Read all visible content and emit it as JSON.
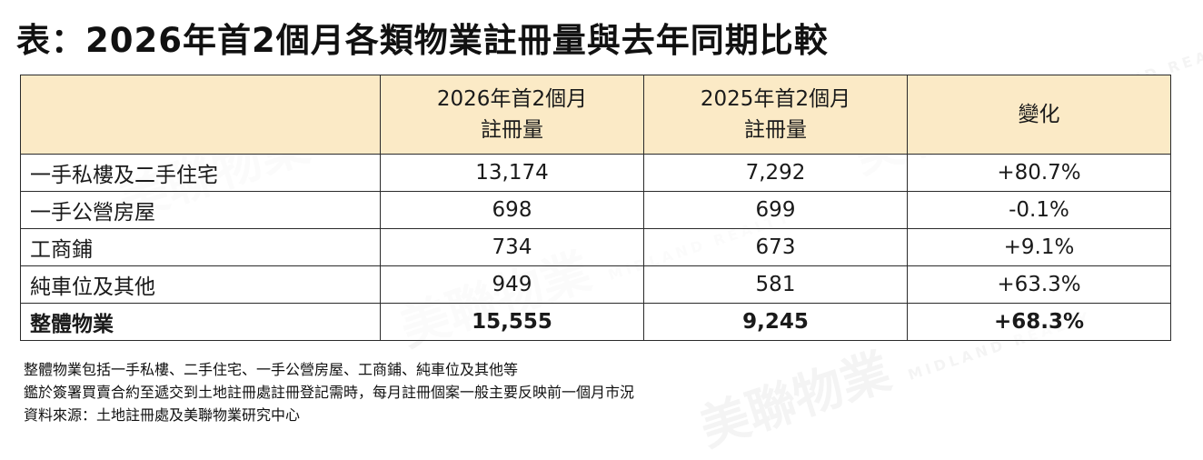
{
  "title": "表：2026年首2個月各類物業註冊量與去年同期比較",
  "table": {
    "header": {
      "col0": "",
      "col1_line1": "2026年首2個月",
      "col1_line2": "註冊量",
      "col2_line1": "2025年首2個月",
      "col2_line2": "註冊量",
      "col3": "變化"
    },
    "rows": [
      {
        "label": "一手私樓及二手住宅",
        "y2026": "13,174",
        "y2025": "7,292",
        "change": "+80.7%"
      },
      {
        "label": "一手公營房屋",
        "y2026": "698",
        "y2025": "699",
        "change": "-0.1%"
      },
      {
        "label": "工商鋪",
        "y2026": "734",
        "y2025": "673",
        "change": "+9.1%"
      },
      {
        "label": "純車位及其他",
        "y2026": "949",
        "y2025": "581",
        "change": "+63.3%"
      }
    ],
    "total": {
      "label": "整體物業",
      "y2026": "15,555",
      "y2025": "9,245",
      "change": "+68.3%"
    }
  },
  "notes": [
    "整體物業包括一手私樓、二手住宅、一手公營房屋、工商鋪、純車位及其他等",
    "鑑於簽署買賣合約至遞交到土地註冊處註冊登記需時，每月註冊個案一般主要反映前一個月市況",
    "資料來源：土地註冊處及美聯物業研究中心"
  ],
  "watermark": {
    "brand_cn": "美聯物業",
    "brand_en": "MIDLAND REALTY"
  }
}
